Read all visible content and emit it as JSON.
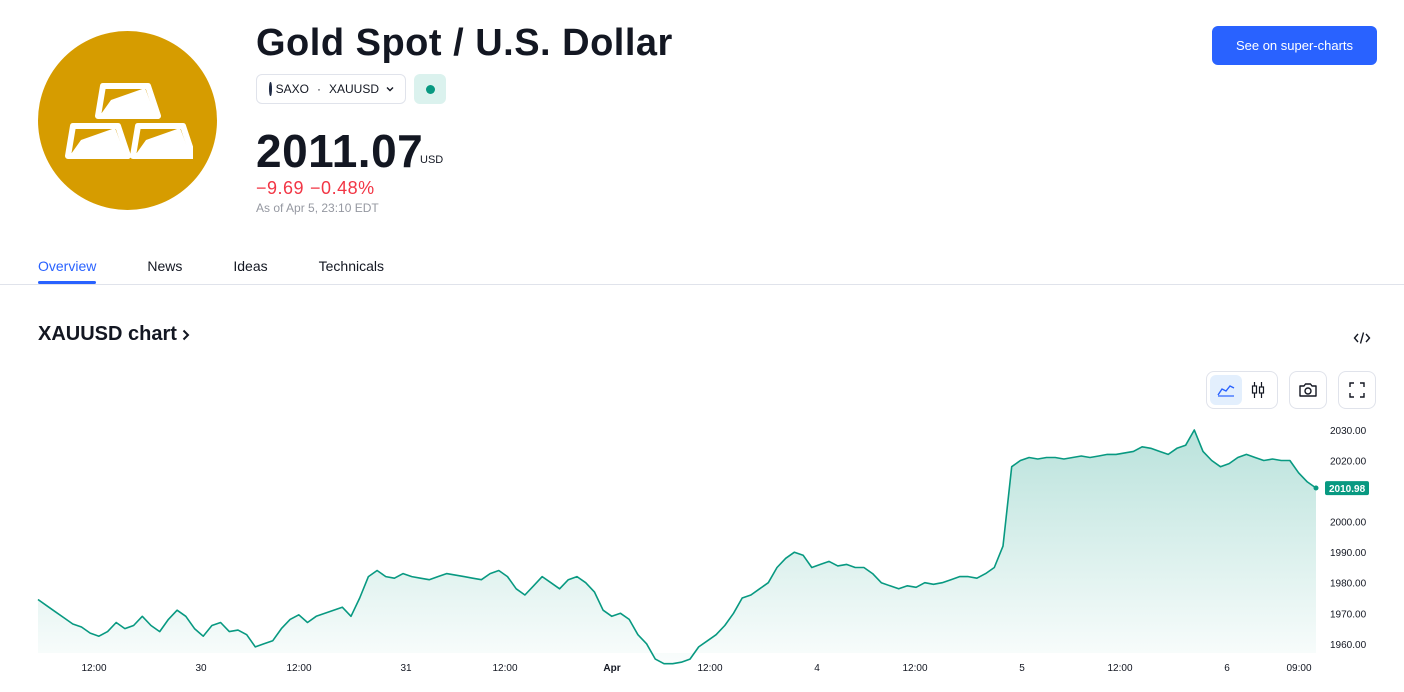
{
  "header": {
    "title": "Gold Spot / U.S. Dollar",
    "exchange": "SAXO",
    "separator": "·",
    "ticker": "XAUUSD",
    "logo_icon": "gold-bars-icon",
    "logo_color": "#d69c00",
    "market_status_color": "#089981"
  },
  "quote": {
    "price": "2011.07",
    "currency": "USD",
    "change": "−9.69",
    "change_percent": "−0.48%",
    "as_of": "As of Apr 5, 23:10 EDT",
    "change_color": "#f23645"
  },
  "actions": {
    "super_charts_label": "See on super-charts",
    "accent_color": "#2962ff"
  },
  "tabs": [
    {
      "label": "Overview",
      "active": true
    },
    {
      "label": "News",
      "active": false
    },
    {
      "label": "Ideas",
      "active": false
    },
    {
      "label": "Technicals",
      "active": false
    }
  ],
  "chart_section": {
    "title": "XAUUSD chart",
    "chevron_icon": "chevron-right-icon",
    "embed_icon": "code-embed-icon",
    "tools": [
      {
        "name": "area-chart-icon",
        "active": true
      },
      {
        "name": "candles-icon",
        "active": false
      },
      {
        "name": "camera-icon",
        "active": false
      },
      {
        "name": "fullscreen-icon",
        "active": false
      }
    ]
  },
  "chart_data": {
    "type": "area",
    "line_color": "#089981",
    "x_tick_labels": [
      "12:00",
      "30",
      "12:00",
      "31",
      "12:00",
      "Apr",
      "12:00",
      "4",
      "12:00",
      "5",
      "12:00",
      "6",
      "09:00"
    ],
    "y_tick_labels": [
      "2030.00",
      "2020.00",
      "2010.98",
      "2000.00",
      "1990.00",
      "1980.00",
      "1970.00",
      "1960.00"
    ],
    "y_ticks": [
      2030,
      2020,
      2000,
      1990,
      1980,
      1970,
      1960
    ],
    "ylim": [
      1957,
      2030
    ],
    "last_value": "2010.98",
    "values": [
      1974.5,
      1972.5,
      1970.5,
      1968.5,
      1966.5,
      1965.5,
      1963.5,
      1962.5,
      1964,
      1967,
      1965,
      1966,
      1969,
      1966,
      1964,
      1968,
      1971,
      1969,
      1965,
      1962.5,
      1966,
      1967,
      1964,
      1964.5,
      1963,
      1959,
      1960,
      1961,
      1965,
      1968,
      1969.5,
      1967,
      1969,
      1970,
      1971,
      1972,
      1969,
      1975,
      1982,
      1984,
      1982,
      1981.5,
      1983,
      1982,
      1981.5,
      1981,
      1982,
      1983,
      1982.5,
      1982,
      1981.5,
      1981,
      1983,
      1984,
      1982,
      1978,
      1976,
      1979,
      1982,
      1980,
      1978,
      1981,
      1982,
      1980,
      1977,
      1971,
      1969,
      1970,
      1968,
      1963,
      1960,
      1955,
      1953.5,
      1953.5,
      1954,
      1955,
      1959,
      1961,
      1963,
      1966,
      1970,
      1975,
      1976,
      1978,
      1980,
      1985,
      1988,
      1990,
      1989,
      1985,
      1986,
      1987,
      1985.5,
      1986,
      1985,
      1985,
      1983,
      1980,
      1979,
      1978,
      1979,
      1978.5,
      1980,
      1979.5,
      1980,
      1981,
      1982,
      1982,
      1981.5,
      1983,
      1985,
      1992,
      2018,
      2020,
      2021,
      2020.5,
      2021,
      2021,
      2020.5,
      2021,
      2021.5,
      2021,
      2021.5,
      2022,
      2022,
      2022.5,
      2023,
      2024.5,
      2024,
      2023,
      2022,
      2024,
      2025,
      2030,
      2023,
      2020,
      2018,
      2019,
      2021,
      2022,
      2021,
      2020,
      2020.5,
      2020,
      2020,
      2016,
      2013,
      2011
    ]
  }
}
